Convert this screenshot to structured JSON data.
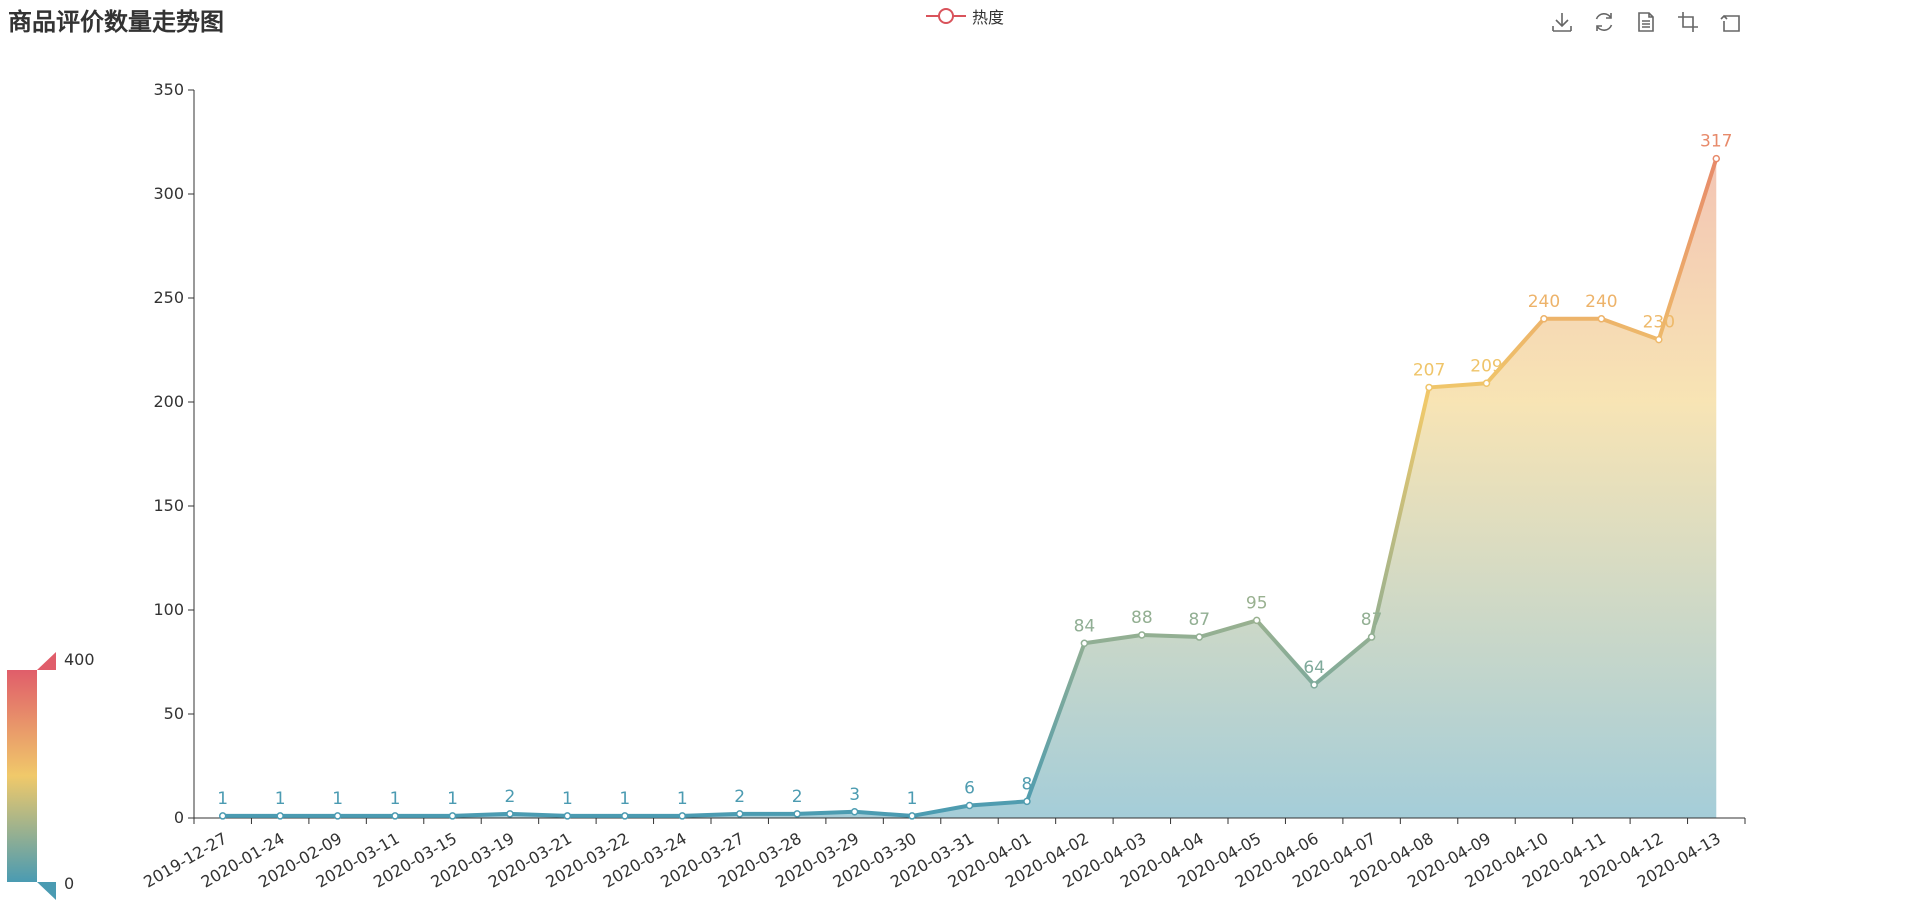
{
  "chart_data": {
    "type": "area",
    "title": "商品评价数量走势图",
    "legend": [
      "热度"
    ],
    "legend_position": "top-center",
    "x": [
      "2019-12-27",
      "2020-01-24",
      "2020-02-09",
      "2020-03-11",
      "2020-03-15",
      "2020-03-19",
      "2020-03-21",
      "2020-03-22",
      "2020-03-24",
      "2020-03-27",
      "2020-03-28",
      "2020-03-29",
      "2020-03-30",
      "2020-03-31",
      "2020-04-01",
      "2020-04-02",
      "2020-04-03",
      "2020-04-04",
      "2020-04-05",
      "2020-04-06",
      "2020-04-07",
      "2020-04-08",
      "2020-04-09",
      "2020-04-10",
      "2020-04-11",
      "2020-04-12",
      "2020-04-13"
    ],
    "series": [
      {
        "name": "热度",
        "values": [
          1,
          1,
          1,
          1,
          1,
          2,
          1,
          1,
          1,
          2,
          2,
          3,
          1,
          6,
          8,
          84,
          88,
          87,
          95,
          64,
          87,
          207,
          209,
          240,
          240,
          230,
          317
        ]
      }
    ],
    "ylim": [
      0,
      350
    ],
    "yticks": [
      0,
      50,
      100,
      150,
      200,
      250,
      300,
      350
    ],
    "grid": false,
    "smooth": false,
    "area_fill": true,
    "visual_map": {
      "min": 0,
      "max": 400,
      "min_label": "0",
      "max_label": "400",
      "colors": [
        "#4a9bb2",
        "#f0c96a",
        "#e05d6a"
      ]
    },
    "toolbox_icons": [
      "download-icon",
      "refresh-icon",
      "data-view-icon",
      "zoom-icon",
      "restore-icon"
    ]
  }
}
